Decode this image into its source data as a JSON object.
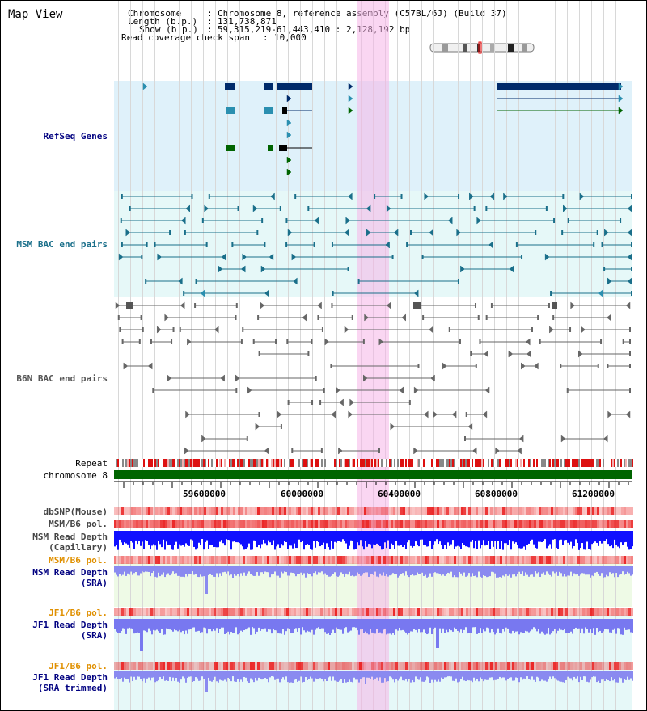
{
  "header": {
    "title": "Map View",
    "chromosome_label": "Chromosome",
    "chromosome_value": "Chromosome 8, reference assembly (C57BL/6J) (Build 37)",
    "length_label": "Length (b.p.)",
    "length_value": "131,738,871",
    "show_label": "Show (b.p.)",
    "show_value": "59,315,219-61,443,410 : 2,128,192 bp",
    "coverage_label": "Read coverage check span",
    "coverage_value": "10,000"
  },
  "tracks": {
    "refseq": "RefSeq Genes",
    "msm_bac": "MSM BAC end pairs",
    "b6n_bac": "B6N BAC end pairs",
    "repeat": "Repeat",
    "chromosome": "chromosome 8",
    "dbsnp": "dbSNP(Mouse)",
    "msm_b6_pol_1": "MSM/B6 pol.",
    "msm_read_depth_cap_1": "MSM Read Depth",
    "msm_read_depth_cap_2": "(Capillary)",
    "msm_b6_pol_2": "MSM/B6 pol.",
    "msm_read_depth_sra_1": "MSM Read Depth",
    "msm_read_depth_sra_2": "(SRA)",
    "jf1_b6_pol_1": "JF1/B6 pol.",
    "jf1_read_depth_sra_1": "JF1 Read Depth",
    "jf1_read_depth_sra_2": "(SRA)",
    "jf1_b6_pol_2": "JF1/B6 pol.",
    "jf1_read_depth_trim_1": "JF1 Read Depth",
    "jf1_read_depth_trim_2": "(SRA trimmed)"
  },
  "ruler": {
    "ticks": [
      "59600000",
      "60000000",
      "60400000",
      "60800000",
      "61200000"
    ]
  },
  "colors": {
    "refseq_bg": "#dff1fa",
    "msm_bg": "#e6f8f8",
    "gene_dark": "#002b6b",
    "gene_green": "#006400",
    "msm_line": "#1a6f8a",
    "b6n_line": "#555555",
    "chromosome": "#006400",
    "highlight": "#f6b4e8",
    "label_blue": "#000080",
    "label_teal": "#1a6f8a",
    "label_orange": "#e09000",
    "depth_blue": "#2020ff",
    "depth_light": "#8080ff"
  }
}
